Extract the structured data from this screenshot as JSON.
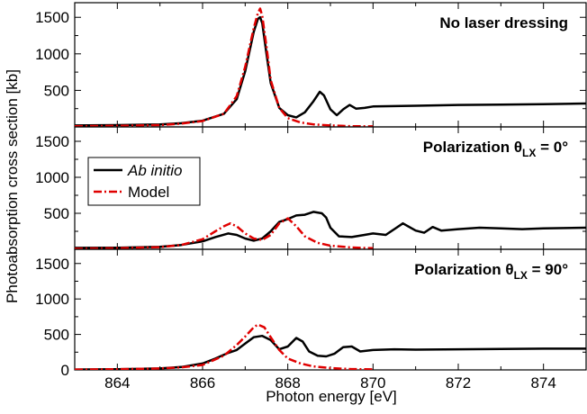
{
  "chart_data": {
    "type": "line",
    "xlabel": "Photon energy [eV]",
    "ylabel": "Photoabsorption cross section [kb]",
    "xlim": [
      863,
      875
    ],
    "x_ticks": [
      "864",
      "866",
      "868",
      "870",
      "872",
      "874"
    ],
    "y_ticks": [
      "0",
      "500",
      "1000",
      "1500"
    ],
    "legend": {
      "placement": "left of middle panel",
      "entries": [
        {
          "label": "Ab initio",
          "italic": true,
          "color": "#000000",
          "dash": "solid"
        },
        {
          "label": "Model",
          "italic": false,
          "color": "#e00000",
          "dash": "dash-dot"
        }
      ]
    },
    "panels": [
      {
        "title": "No laser dressing",
        "title_parts": [],
        "ylim": [
          0,
          1700
        ],
        "show_zero_tick": false,
        "series": [
          {
            "name": "Ab initio",
            "color": "#000000",
            "x": [
              863,
              864,
              865,
              865.5,
              866,
              866.5,
              866.8,
              867.0,
              867.2,
              867.3,
              867.35,
              867.4,
              867.5,
              867.6,
              867.8,
              868.0,
              868.2,
              868.4,
              868.6,
              868.75,
              868.85,
              869.0,
              869.15,
              869.3,
              869.45,
              869.6,
              869.8,
              870,
              871,
              872,
              873,
              874,
              875
            ],
            "y": [
              20,
              25,
              35,
              50,
              85,
              180,
              380,
              760,
              1300,
              1480,
              1500,
              1420,
              1000,
              600,
              260,
              160,
              130,
              200,
              350,
              480,
              430,
              240,
              160,
              240,
              300,
              250,
              260,
              280,
              290,
              300,
              305,
              310,
              320
            ]
          },
          {
            "name": "Model",
            "color": "#e00000",
            "x": [
              863,
              864,
              865,
              865.5,
              866,
              866.5,
              866.8,
              867.0,
              867.2,
              867.3,
              867.35,
              867.4,
              867.5,
              867.6,
              867.8,
              868.0,
              868.3,
              868.6,
              869.0,
              869.5,
              870
            ],
            "y": [
              10,
              15,
              25,
              45,
              80,
              180,
              420,
              820,
              1350,
              1560,
              1620,
              1520,
              1100,
              640,
              260,
              120,
              60,
              35,
              20,
              10,
              8
            ]
          }
        ]
      },
      {
        "title": "Polarization θ",
        "title_parts": [
          "LX",
          "= 0°"
        ],
        "ylim": [
          0,
          1700
        ],
        "show_zero_tick": false,
        "series": [
          {
            "name": "Ab initio",
            "color": "#000000",
            "x": [
              863,
              864,
              865,
              865.5,
              866,
              866.3,
              866.6,
              866.8,
              867.0,
              867.2,
              867.4,
              867.6,
              867.8,
              868.0,
              868.2,
              868.4,
              868.6,
              868.8,
              868.9,
              869.0,
              869.2,
              869.5,
              869.8,
              870.0,
              870.3,
              870.5,
              870.7,
              871.0,
              871.2,
              871.4,
              871.6,
              872,
              872.5,
              873,
              873.5,
              874,
              875
            ],
            "y": [
              20,
              22,
              35,
              60,
              110,
              170,
              220,
              200,
              150,
              120,
              150,
              250,
              380,
              420,
              470,
              480,
              520,
              500,
              440,
              300,
              180,
              170,
              200,
              220,
              200,
              280,
              360,
              260,
              230,
              310,
              260,
              280,
              300,
              290,
              280,
              290,
              300
            ]
          },
          {
            "name": "Model",
            "color": "#e00000",
            "x": [
              863,
              864,
              865,
              865.5,
              866,
              866.3,
              866.5,
              866.65,
              866.8,
              867.0,
              867.2,
              867.4,
              867.6,
              867.8,
              868.0,
              868.2,
              868.4,
              868.7,
              869.0,
              869.5,
              870
            ],
            "y": [
              10,
              15,
              30,
              60,
              140,
              250,
              320,
              360,
              320,
              220,
              150,
              130,
              200,
              360,
              430,
              320,
              180,
              90,
              50,
              25,
              15
            ]
          }
        ]
      },
      {
        "title": "Polarization θ",
        "title_parts": [
          "LX",
          "= 90°"
        ],
        "ylim": [
          0,
          1700
        ],
        "show_zero_tick": true,
        "series": [
          {
            "name": "Ab initio",
            "color": "#000000",
            "x": [
              863,
              864,
              865,
              865.5,
              866,
              866.3,
              866.6,
              866.8,
              867.0,
              867.2,
              867.4,
              867.6,
              867.8,
              868.0,
              868.2,
              868.35,
              868.5,
              868.7,
              868.9,
              869.1,
              869.3,
              869.5,
              869.7,
              870,
              870.5,
              871,
              872,
              873,
              874,
              875
            ],
            "y": [
              5,
              10,
              20,
              40,
              90,
              160,
              240,
              280,
              370,
              460,
              480,
              420,
              290,
              330,
              450,
              400,
              260,
              200,
              190,
              230,
              320,
              330,
              260,
              280,
              290,
              285,
              290,
              295,
              300,
              300
            ]
          },
          {
            "name": "Model",
            "color": "#e00000",
            "x": [
              863,
              864,
              865,
              865.5,
              866,
              866.5,
              866.8,
              867.0,
              867.2,
              867.3,
              867.45,
              867.6,
              867.8,
              868.0,
              868.3,
              868.6,
              869.0,
              869.5,
              870
            ],
            "y": [
              5,
              10,
              20,
              35,
              70,
              200,
              350,
              470,
              600,
              640,
              600,
              460,
              280,
              160,
              90,
              50,
              25,
              12,
              8
            ]
          }
        ]
      }
    ]
  }
}
